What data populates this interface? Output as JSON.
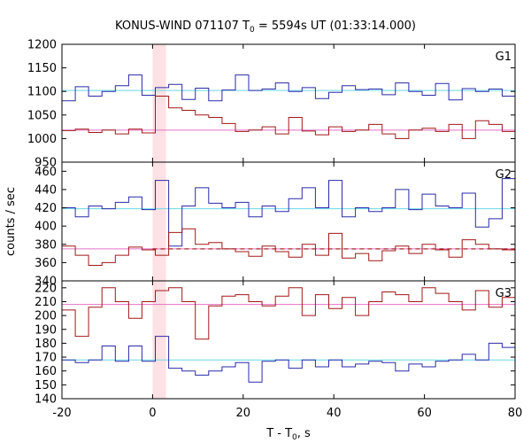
{
  "chart_data": {
    "type": "line",
    "title": "KONUS-WIND 071107 T",
    "title_sub": "0",
    "title_tail": " = 5594s UT (01:33:14.000)",
    "xlabel": "T - T",
    "xlabel_sub": "0",
    "xlabel_tail": ", s",
    "ylabel": "counts / sec",
    "xlim": [
      -20,
      80
    ],
    "x_ticks": [
      -20,
      0,
      20,
      40,
      60,
      80
    ],
    "highlight_interval": [
      0,
      2.944
    ],
    "bin_edges": [
      -20.0,
      -17.056,
      -14.112,
      -11.168,
      -8.224,
      -5.28,
      -2.336,
      0.608,
      3.552,
      6.496,
      9.44,
      12.384,
      15.328,
      18.272,
      21.216,
      24.16,
      27.104,
      30.048,
      32.992,
      35.936,
      38.88,
      41.824,
      44.768,
      47.712,
      50.656,
      53.6,
      56.544,
      59.488,
      62.432,
      65.376,
      68.32,
      71.264,
      74.208,
      77.152,
      80.0
    ],
    "colors": {
      "blue": "#2a2aa8",
      "red": "#a01818",
      "cyan": "#66d9e8",
      "pink": "#e870c8",
      "highlight": "#fde1e4"
    },
    "panels": [
      {
        "label": "G1",
        "ylim": [
          950,
          1200
        ],
        "y_ticks": [
          950,
          1000,
          1050,
          1100,
          1150,
          1200
        ],
        "series": [
          {
            "color_key": "blue",
            "values": [
              1080,
              1110,
              1090,
              1100,
              1112,
              1135,
              1092,
              1108,
              1115,
              1083,
              1107,
              1080,
              1103,
              1135,
              1102,
              1105,
              1118,
              1100,
              1108,
              1085,
              1098,
              1112,
              1104,
              1105,
              1093,
              1118,
              1100,
              1092,
              1117,
              1082,
              1106,
              1100,
              1105,
              1090
            ],
            "background": 1102,
            "background_color_key": "cyan"
          },
          {
            "color_key": "red",
            "values": [
              1017,
              1020,
              1013,
              1018,
              1010,
              1020,
              1012,
              1090,
              1065,
              1060,
              1050,
              1045,
              1032,
              1015,
              1018,
              1025,
              1010,
              1045,
              1016,
              1008,
              1025,
              1015,
              1018,
              1030,
              1010,
              1000,
              1018,
              1022,
              1015,
              1030,
              1000,
              1038,
              1030,
              1015
            ],
            "background": 1018,
            "background_color_key": "pink"
          }
        ]
      },
      {
        "label": "G2",
        "ylim": [
          340,
          470
        ],
        "y_ticks": [
          340,
          360,
          380,
          400,
          420,
          440,
          460
        ],
        "series": [
          {
            "color_key": "blue",
            "values": [
              420,
              410,
              422,
              419,
              426,
              432,
              418,
              450,
              378,
              422,
              442,
              425,
              420,
              426,
              410,
              422,
              416,
              430,
              442,
              420,
              450,
              410,
              420,
              416,
              420,
              440,
              418,
              435,
              422,
              420,
              436,
              399,
              408,
              452
            ],
            "background": 419,
            "background_color_key": "cyan"
          },
          {
            "color_key": "red",
            "values": [
              378,
              368,
              357,
              360,
              368,
              377,
              374,
              368,
              393,
              397,
              380,
              382,
              375,
              372,
              367,
              378,
              372,
              366,
              380,
              368,
              392,
              365,
              370,
              362,
              373,
              378,
              370,
              380,
              374,
              366,
              385,
              380,
              375,
              374
            ],
            "background": 375,
            "background_color_key": "pink",
            "fit": 375
          }
        ]
      },
      {
        "label": "G3",
        "ylim": [
          140,
          225
        ],
        "y_ticks": [
          140,
          150,
          160,
          170,
          180,
          190,
          200,
          210,
          220
        ],
        "series": [
          {
            "color_key": "blue",
            "values": [
              168,
              166,
              168,
              178,
              167,
              178,
              167,
              185,
              162,
              160,
              157,
              160,
              163,
              166,
              152,
              167,
              168,
              162,
              168,
              163,
              168,
              163,
              165,
              167,
              166,
              160,
              165,
              163,
              167,
              168,
              172,
              168,
              180,
              177
            ],
            "background": 168,
            "background_color_key": "cyan"
          },
          {
            "color_key": "red",
            "values": [
              204,
              185,
              206,
              220,
              210,
              198,
              210,
              218,
              220,
              210,
              183,
              207,
              214,
              215,
              210,
              207,
              214,
              220,
              200,
              215,
              205,
              213,
              200,
              210,
              217,
              215,
              210,
              220,
              216,
              210,
              204,
              218,
              206,
              213
            ],
            "background": 208,
            "background_color_key": "pink"
          }
        ]
      }
    ]
  }
}
